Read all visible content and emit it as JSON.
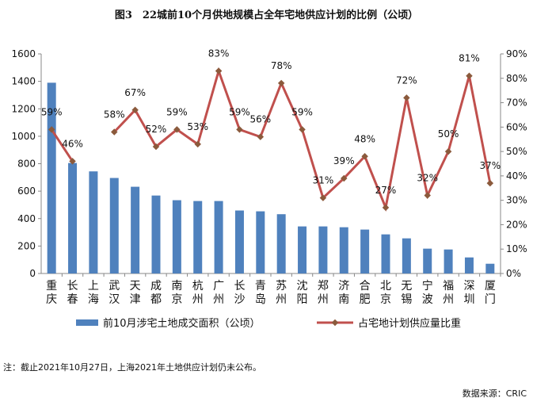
{
  "title": "图3　22城前10个月供地规模占全年宅地供应计划的比例（公顷）",
  "note": "注：截止2021年10月27日，上海2021年土地供应计划仍未公布。",
  "source": "数据来源：CRIC",
  "chart_data": {
    "type": "bar+line",
    "categories": [
      "重庆",
      "长春",
      "上海",
      "武汉",
      "天津",
      "成都",
      "南京",
      "杭州",
      "广州",
      "长沙",
      "青岛",
      "苏州",
      "沈阳",
      "郑州",
      "济南",
      "合肥",
      "北京",
      "无锡",
      "宁波",
      "福州",
      "深圳",
      "厦门"
    ],
    "series": [
      {
        "name": "前10月涉宅土地成交面积（公顷）",
        "type": "bar",
        "axis": "left",
        "color": "#4F81BD",
        "values": [
          1390,
          805,
          744,
          696,
          632,
          568,
          534,
          528,
          528,
          459,
          453,
          432,
          343,
          343,
          337,
          320,
          285,
          256,
          181,
          175,
          117,
          71
        ]
      },
      {
        "name": "占宅地计划供应量比重",
        "type": "line",
        "axis": "right",
        "color": "#C0504D",
        "marker_color": "#8B5A3C",
        "values": [
          59,
          46,
          null,
          58,
          67,
          52,
          59,
          53,
          83,
          59,
          56,
          78,
          59,
          31,
          39,
          48,
          27,
          72,
          32,
          50,
          81,
          37
        ],
        "labels": [
          "59%",
          "46%",
          "",
          "58%",
          "67%",
          "52%",
          "59%",
          "53%",
          "83%",
          "59%",
          "56%",
          "78%",
          "59%",
          "31%",
          "39%",
          "48%",
          "27%",
          "72%",
          "32%",
          "50%",
          "81%",
          "37%"
        ]
      }
    ],
    "left_axis": {
      "min": 0,
      "max": 1600,
      "ticks": [
        "0",
        "200",
        "400",
        "600",
        "800",
        "1000",
        "1200",
        "1400",
        "1600"
      ]
    },
    "right_axis": {
      "min": 0,
      "max": 90,
      "ticks": [
        "0%",
        "10%",
        "20%",
        "30%",
        "40%",
        "50%",
        "60%",
        "70%",
        "80%",
        "90%"
      ]
    },
    "legend_position": "bottom",
    "grid": false
  }
}
